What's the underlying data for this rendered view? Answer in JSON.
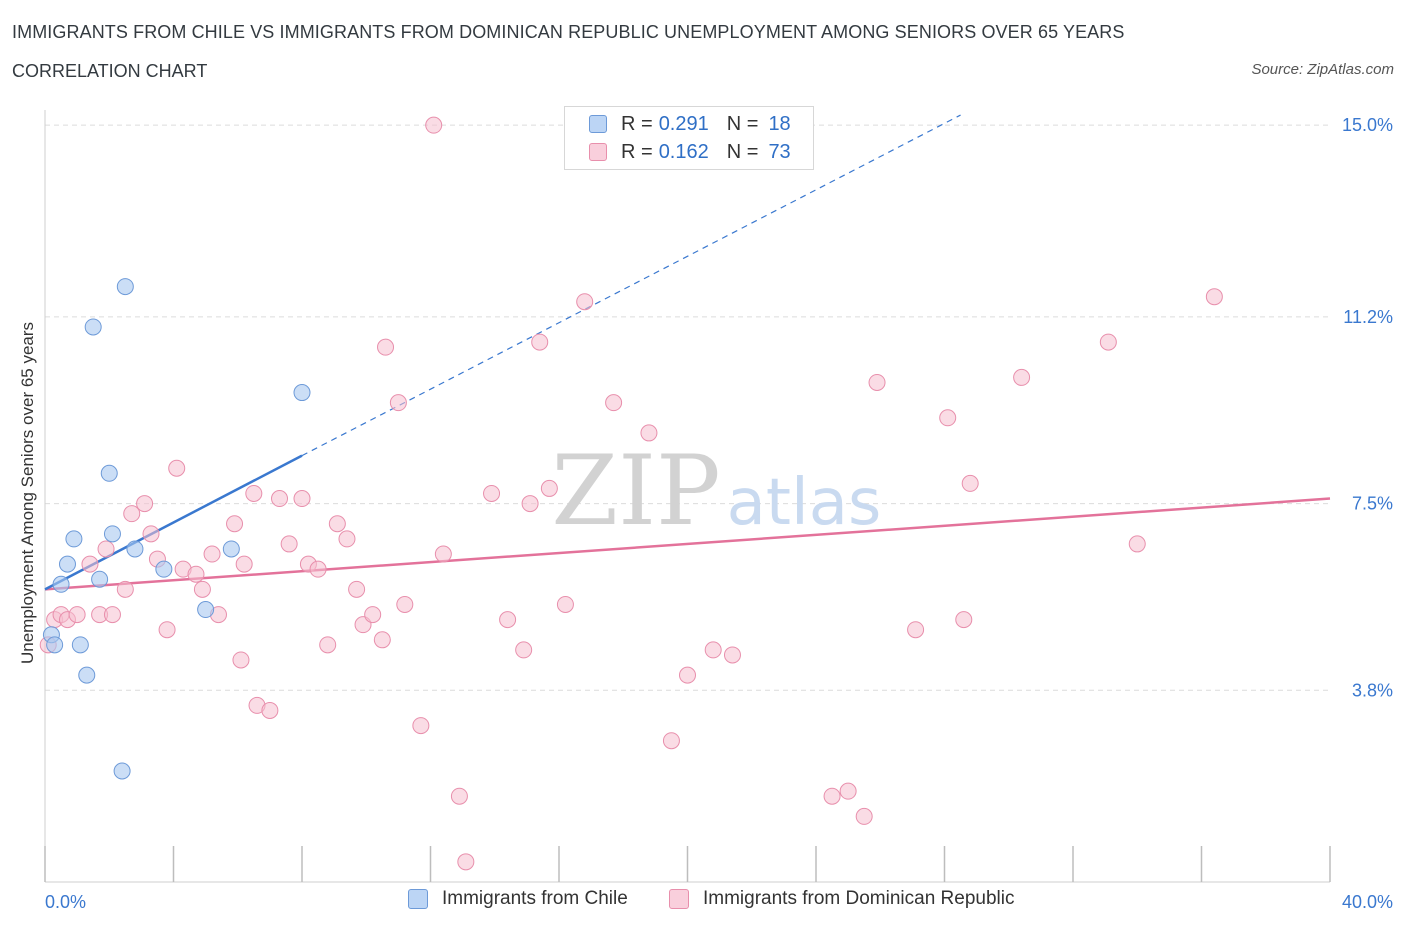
{
  "title": "IMMIGRANTS FROM CHILE VS IMMIGRANTS FROM DOMINICAN REPUBLIC UNEMPLOYMENT AMONG SENIORS OVER 65 YEARS",
  "subtitle": "CORRELATION CHART",
  "source": "Source: ZipAtlas.com",
  "watermark": {
    "zip": "ZIP",
    "atlas": "atlas"
  },
  "legend": {
    "chile": {
      "r_label": "R =",
      "r_value": "0.291",
      "n_label": "N =",
      "n_value": "18"
    },
    "dominican": {
      "r_label": "R =",
      "r_value": "0.162",
      "n_label": "N =",
      "n_value": "73"
    }
  },
  "colors": {
    "chile_fill": "#a9c8f0",
    "chile_stroke": "#6d9ad8",
    "chile_line": "#3a78cf",
    "dominican_fill": "#f6bfd0",
    "dominican_stroke": "#e88fac",
    "dominican_line": "#e3729a",
    "tick_label": "#3a78cf",
    "grid": "#dcdcdc"
  },
  "chart_data": {
    "type": "scatter",
    "xlabel": "",
    "ylabel": "Unemployment Among Seniors over 65 years",
    "xlim": [
      0,
      40
    ],
    "ylim": [
      0,
      15.3
    ],
    "x_tick_labels": [
      {
        "value": 0,
        "label": "0.0%"
      },
      {
        "value": 40,
        "label": "40.0%"
      }
    ],
    "y_tick_labels": [
      {
        "value": 3.8,
        "label": "3.8%"
      },
      {
        "value": 7.5,
        "label": "7.5%"
      },
      {
        "value": 11.2,
        "label": "11.2%"
      },
      {
        "value": 15.0,
        "label": "15.0%"
      }
    ],
    "x_minor_ticks": [
      0,
      4,
      8,
      12,
      16,
      20,
      24,
      28,
      32,
      36,
      40
    ],
    "series": [
      {
        "name": "Immigrants from Chile",
        "key": "chile",
        "points": [
          [
            0.2,
            4.9
          ],
          [
            0.3,
            4.7
          ],
          [
            0.5,
            5.9
          ],
          [
            0.7,
            6.3
          ],
          [
            0.9,
            6.8
          ],
          [
            1.1,
            4.7
          ],
          [
            1.3,
            4.1
          ],
          [
            1.5,
            11.0
          ],
          [
            1.7,
            6.0
          ],
          [
            2.0,
            8.1
          ],
          [
            2.1,
            6.9
          ],
          [
            2.4,
            2.2
          ],
          [
            2.5,
            11.8
          ],
          [
            2.8,
            6.6
          ],
          [
            3.7,
            6.2
          ],
          [
            5.0,
            5.4
          ],
          [
            5.8,
            6.6
          ],
          [
            8.0,
            9.7
          ]
        ],
        "trend": {
          "x1": 0,
          "y1": 5.8,
          "x2": 8.0,
          "y2": 8.45,
          "dash_x2": 28.5,
          "dash_y2": 15.2
        }
      },
      {
        "name": "Immigrants from Dominican Republic",
        "key": "dominican",
        "points": [
          [
            0.1,
            4.7
          ],
          [
            0.3,
            5.2
          ],
          [
            0.5,
            5.3
          ],
          [
            0.7,
            5.2
          ],
          [
            1.0,
            5.3
          ],
          [
            1.4,
            6.3
          ],
          [
            1.7,
            5.3
          ],
          [
            1.9,
            6.6
          ],
          [
            2.1,
            5.3
          ],
          [
            2.5,
            5.8
          ],
          [
            2.7,
            7.3
          ],
          [
            3.1,
            7.5
          ],
          [
            3.3,
            6.9
          ],
          [
            3.5,
            6.4
          ],
          [
            3.8,
            5.0
          ],
          [
            4.1,
            8.2
          ],
          [
            4.3,
            6.2
          ],
          [
            4.7,
            6.1
          ],
          [
            4.9,
            5.8
          ],
          [
            5.2,
            6.5
          ],
          [
            5.4,
            5.3
          ],
          [
            5.9,
            7.1
          ],
          [
            6.1,
            4.4
          ],
          [
            6.2,
            6.3
          ],
          [
            6.5,
            7.7
          ],
          [
            6.6,
            3.5
          ],
          [
            7.0,
            3.4
          ],
          [
            7.3,
            7.6
          ],
          [
            7.6,
            6.7
          ],
          [
            8.0,
            7.6
          ],
          [
            8.2,
            6.3
          ],
          [
            8.5,
            6.2
          ],
          [
            8.8,
            4.7
          ],
          [
            9.1,
            7.1
          ],
          [
            9.4,
            6.8
          ],
          [
            9.7,
            5.8
          ],
          [
            9.9,
            5.1
          ],
          [
            10.2,
            5.3
          ],
          [
            10.5,
            4.8
          ],
          [
            10.6,
            10.6
          ],
          [
            11.0,
            9.5
          ],
          [
            11.2,
            5.5
          ],
          [
            11.7,
            3.1
          ],
          [
            12.1,
            15.0
          ],
          [
            12.4,
            6.5
          ],
          [
            12.9,
            1.7
          ],
          [
            13.1,
            0.4
          ],
          [
            13.9,
            7.7
          ],
          [
            14.4,
            5.2
          ],
          [
            14.9,
            4.6
          ],
          [
            15.1,
            7.5
          ],
          [
            15.4,
            10.7
          ],
          [
            15.7,
            7.8
          ],
          [
            16.2,
            5.5
          ],
          [
            16.8,
            11.5
          ],
          [
            17.7,
            9.5
          ],
          [
            18.8,
            8.9
          ],
          [
            19.5,
            2.8
          ],
          [
            20.0,
            4.1
          ],
          [
            20.8,
            4.6
          ],
          [
            21.4,
            4.5
          ],
          [
            24.5,
            1.7
          ],
          [
            25.0,
            1.8
          ],
          [
            25.5,
            1.3
          ],
          [
            25.9,
            9.9
          ],
          [
            27.1,
            5.0
          ],
          [
            28.1,
            9.2
          ],
          [
            28.6,
            5.2
          ],
          [
            28.8,
            7.9
          ],
          [
            30.4,
            10.0
          ],
          [
            33.1,
            10.7
          ],
          [
            34.0,
            6.7
          ],
          [
            36.4,
            11.6
          ]
        ],
        "trend": {
          "x1": 0,
          "y1": 5.8,
          "x2": 40,
          "y2": 7.6
        }
      }
    ]
  },
  "bottom_legend": {
    "chile_label": "Immigrants from Chile",
    "dominican_label": "Immigrants from Dominican Republic"
  }
}
